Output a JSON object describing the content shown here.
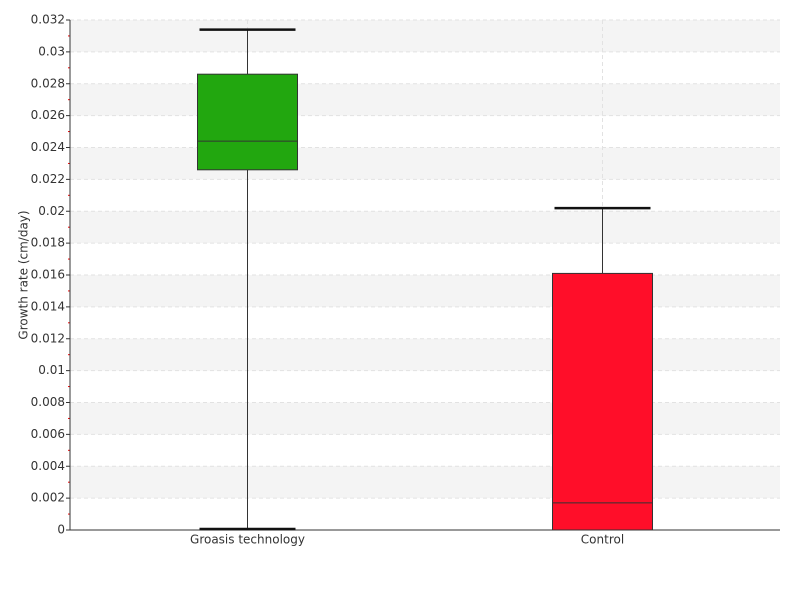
{
  "chart_data": {
    "type": "box",
    "y_label": "Growth rate (cm/day)",
    "categories": [
      "Groasis technology",
      "Control"
    ],
    "boxes": [
      {
        "min": 0,
        "q1": 0.0226,
        "median": 0.0244,
        "q3": 0.0286,
        "max": 0.0314,
        "color": "#22a70f"
      },
      {
        "min": 0,
        "q1": 0,
        "median": 0.0017,
        "q3": 0.0161,
        "max": 0.0202,
        "color": "#ff0e29"
      }
    ],
    "ylim": [
      0,
      0.032
    ],
    "yticks": [
      0,
      0.002,
      0.004,
      0.006,
      0.008,
      0.01,
      0.012,
      0.014,
      0.016,
      0.018,
      0.02,
      0.022,
      0.024,
      0.026,
      0.028,
      0.03,
      0.032
    ],
    "grid": true
  }
}
